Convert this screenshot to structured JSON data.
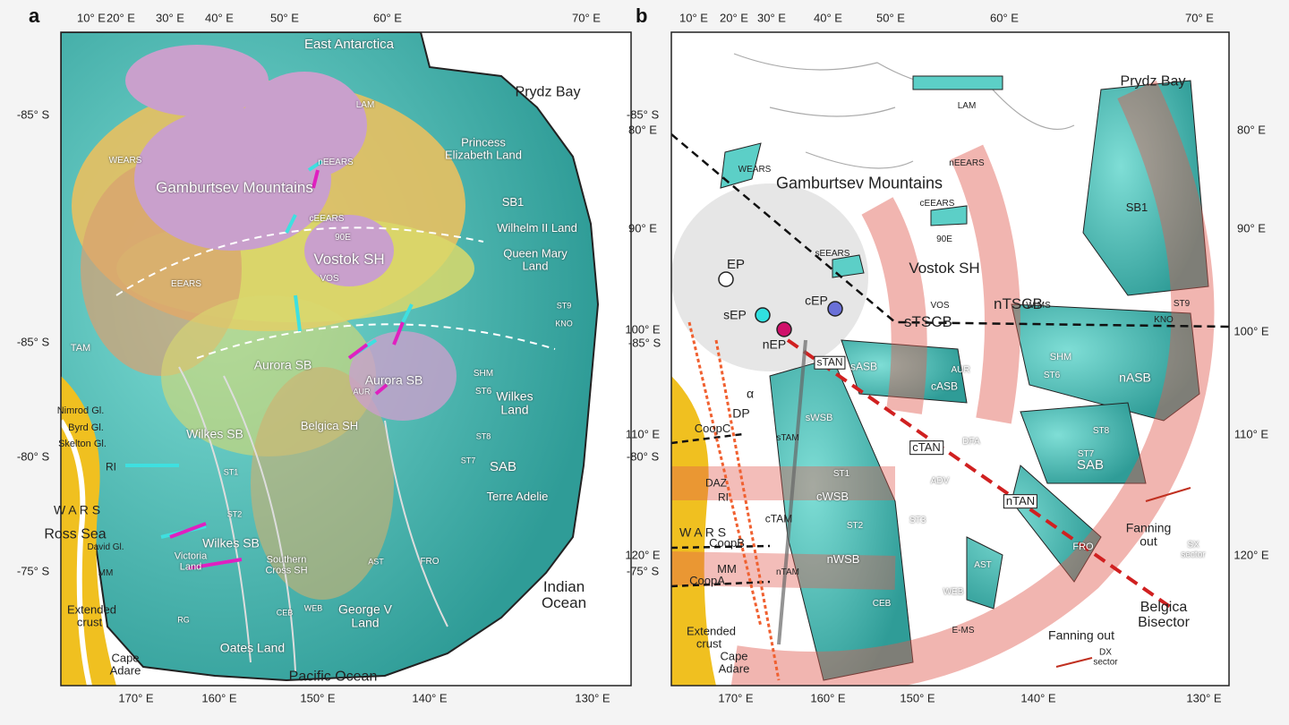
{
  "panel_a": {
    "letter": "a",
    "top_ticks": [
      "10° E",
      "20° E",
      "30° E",
      "40° E",
      "50° E",
      "60° E",
      "70° E"
    ],
    "left_ticks": [
      "-85° S",
      "-85° S",
      "-80° S",
      "-75° S"
    ],
    "right_ticks": [
      "80° E",
      "90° E",
      "100° E",
      "110° E",
      "120° E"
    ],
    "bottom_ticks": [
      "170° E",
      "160° E",
      "150° E",
      "140° E",
      "130° E"
    ],
    "labels": [
      "East Antarctica",
      "Prydz Bay",
      "LAM",
      "Princess Elizabeth Land",
      "Gamburtsev Mountains",
      "WEARS",
      "nEEARS",
      "SB1",
      "Wilhelm II Land",
      "Queen Mary Land",
      "cEEARS",
      "90E",
      "Vostok SH",
      "EEARS",
      "VOS",
      "ST9",
      "KNO",
      "Aurora SB",
      "Aurora SB",
      "AUR",
      "SHM",
      "ST6",
      "Wilkes Land",
      "Belgica SH",
      "ST8",
      "ST7",
      "SAB",
      "Terre Adelie",
      "Wilkes SB",
      "ST1",
      "ST2",
      "Wilkes SB",
      "Southern Cross SH",
      "CEB",
      "WEB",
      "AST",
      "FRO",
      "George V Land",
      "Oates Land",
      "Pacific Ocean",
      "Indian Ocean",
      "Nimrod Gl.",
      "Byrd Gl.",
      "Skelton Gl.",
      "RI",
      "W A R S",
      "Ross Sea",
      "David Gl.",
      "MM",
      "Extended crust",
      "Cape Adare",
      "Victoria Land",
      "RG",
      "TAM"
    ]
  },
  "panel_b": {
    "letter": "b",
    "top_ticks": [
      "10° E",
      "20° E",
      "30° E",
      "40° E",
      "50° E",
      "60° E",
      "70° E"
    ],
    "left_ticks": [
      "-85° S",
      "-85° S",
      "-80° S",
      "-75° S"
    ],
    "right_ticks": [
      "80° E",
      "90° E",
      "100° E",
      "110° E",
      "120° E"
    ],
    "bottom_ticks": [
      "170° E",
      "160° E",
      "150° E",
      "140° E",
      "130° E"
    ],
    "labels": [
      "Prydz Bay",
      "LAM",
      "WEARS",
      "Gamburtsev Mountains",
      "nEEARS",
      "SB1",
      "cEEARS",
      "90E",
      "sEEARS",
      "Vostok SH",
      "EP",
      "sEP",
      "cEP",
      "nEP",
      "sTSCB",
      "nTSCB",
      "W-MS",
      "VOS",
      "KNO",
      "ST9",
      "sTAN",
      "sASB",
      "AUR",
      "cASB",
      "SHM",
      "ST6",
      "nASB",
      "DP",
      "α",
      "CoopC",
      "sWSB",
      "cTAN",
      "DFA",
      "ST8",
      "ST7",
      "SAB",
      "ADV",
      "nTAN",
      "Fanning out",
      "SX sector",
      "DAZ",
      "RI",
      "W A R S",
      "ST1",
      "cWSB",
      "cTAM",
      "ST2",
      "CoopB",
      "MM",
      "CoopA",
      "nWSB",
      "CEB",
      "WEB",
      "E-MS",
      "AST",
      "FRO",
      "ST3",
      "Belgica Bisector",
      "Fanning out",
      "DX sector",
      "Extended crust",
      "Cape Adare",
      "sTAM",
      "nTAM"
    ]
  }
}
